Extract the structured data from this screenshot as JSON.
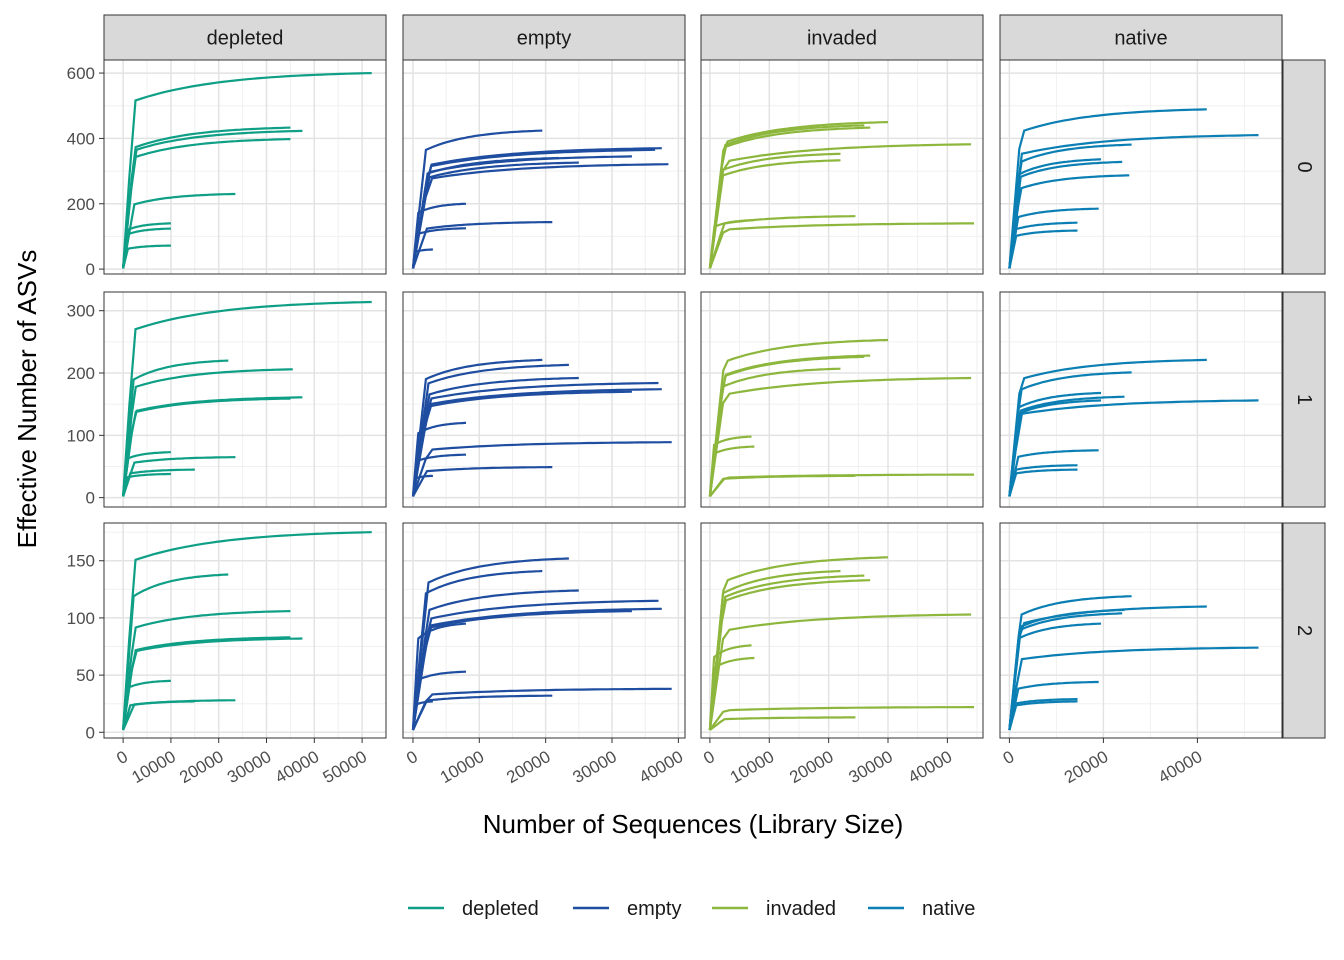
{
  "chart_data": {
    "type": "line",
    "title": "",
    "xlabel": "Number of Sequences (Library Size)",
    "ylabel": "Effective Number of ASVs",
    "grid": true,
    "legend_position": "bottom",
    "legend": [
      "depleted",
      "empty",
      "invaded",
      "native"
    ],
    "colors": {
      "depleted": "#0e9f86",
      "empty": "#1f4da0",
      "invaded": "#8db63c",
      "native": "#0b7fb3"
    },
    "columns": [
      "depleted",
      "empty",
      "invaded",
      "native"
    ],
    "rows": [
      "0",
      "1",
      "2"
    ],
    "x_ranges": {
      "depleted": [
        -4000,
        55000
      ],
      "empty": [
        -1500,
        41000
      ],
      "invaded": [
        -1500,
        46000
      ],
      "native": [
        -2000,
        58000
      ]
    },
    "x_ticks": {
      "depleted": [
        0,
        10000,
        20000,
        30000,
        40000,
        50000
      ],
      "empty": [
        0,
        10000,
        20000,
        30000,
        40000
      ],
      "invaded": [
        0,
        10000,
        20000,
        30000,
        40000
      ],
      "native": [
        0,
        20000,
        40000
      ]
    },
    "y_ranges": {
      "0": [
        -15,
        640
      ],
      "1": [
        -15,
        330
      ],
      "2": [
        -5,
        183
      ]
    },
    "y_ticks": {
      "0": [
        0,
        200,
        400,
        600
      ],
      "1": [
        0,
        100,
        200,
        300
      ],
      "2": [
        0,
        50,
        100,
        150
      ]
    },
    "panels": {
      "depleted": {
        "0": [
          [
            52000,
            600
          ],
          [
            37500,
            423
          ],
          [
            35000,
            433
          ],
          [
            35000,
            398
          ],
          [
            23500,
            230
          ],
          [
            10000,
            140
          ],
          [
            10000,
            124
          ],
          [
            10000,
            72
          ]
        ],
        "1": [
          [
            52000,
            314
          ],
          [
            35500,
            206
          ],
          [
            22000,
            220
          ],
          [
            37500,
            161
          ],
          [
            35000,
            159
          ],
          [
            23500,
            65
          ],
          [
            15000,
            45
          ],
          [
            10000,
            73
          ],
          [
            10000,
            38
          ]
        ],
        "2": [
          [
            52000,
            175
          ],
          [
            22000,
            138
          ],
          [
            35000,
            106
          ],
          [
            37500,
            82
          ],
          [
            35000,
            83
          ],
          [
            10000,
            45
          ],
          [
            23500,
            28
          ],
          [
            15000,
            27
          ]
        ]
      },
      "empty": {
        "0": [
          [
            19500,
            424
          ],
          [
            37500,
            370
          ],
          [
            38500,
            321
          ],
          [
            36500,
            365
          ],
          [
            33000,
            345
          ],
          [
            25000,
            326
          ],
          [
            22000,
            340
          ],
          [
            21000,
            144
          ],
          [
            8000,
            200
          ],
          [
            8000,
            125
          ],
          [
            3000,
            60
          ]
        ],
        "1": [
          [
            19500,
            221
          ],
          [
            23500,
            213
          ],
          [
            37000,
            184
          ],
          [
            25000,
            192
          ],
          [
            37500,
            174
          ],
          [
            33000,
            170
          ],
          [
            21000,
            49
          ],
          [
            8000,
            120
          ],
          [
            8000,
            69
          ],
          [
            39000,
            89
          ],
          [
            3000,
            35
          ]
        ],
        "2": [
          [
            23500,
            152
          ],
          [
            19500,
            141
          ],
          [
            25000,
            124
          ],
          [
            37000,
            115
          ],
          [
            37500,
            108
          ],
          [
            33000,
            106
          ],
          [
            8000,
            95
          ],
          [
            8000,
            53
          ],
          [
            39000,
            38
          ],
          [
            21000,
            32
          ],
          [
            3000,
            27
          ]
        ]
      },
      "invaded": {
        "0": [
          [
            30000,
            450
          ],
          [
            27000,
            433
          ],
          [
            44000,
            382
          ],
          [
            22000,
            333
          ],
          [
            22000,
            353
          ],
          [
            44500,
            140
          ],
          [
            24500,
            162
          ],
          [
            7500,
            150
          ],
          [
            26000,
            440
          ]
        ],
        "1": [
          [
            30000,
            253
          ],
          [
            26000,
            226
          ],
          [
            27000,
            228
          ],
          [
            44000,
            192
          ],
          [
            22000,
            207
          ],
          [
            7000,
            98
          ],
          [
            7500,
            82
          ],
          [
            44500,
            37
          ],
          [
            24500,
            35
          ]
        ],
        "2": [
          [
            30000,
            153
          ],
          [
            22000,
            141
          ],
          [
            26000,
            137
          ],
          [
            27000,
            133
          ],
          [
            44000,
            103
          ],
          [
            7000,
            76
          ],
          [
            7500,
            65
          ],
          [
            44500,
            22
          ],
          [
            24500,
            13
          ]
        ]
      },
      "native": {
        "0": [
          [
            42000,
            489
          ],
          [
            53000,
            410
          ],
          [
            26000,
            381
          ],
          [
            19500,
            336
          ],
          [
            24000,
            328
          ],
          [
            25500,
            287
          ],
          [
            19000,
            185
          ],
          [
            14500,
            142
          ],
          [
            14500,
            118
          ]
        ],
        "1": [
          [
            42000,
            221
          ],
          [
            26000,
            201
          ],
          [
            19500,
            168
          ],
          [
            24500,
            162
          ],
          [
            19500,
            156
          ],
          [
            53000,
            156
          ],
          [
            19000,
            76
          ],
          [
            14500,
            52
          ],
          [
            14500,
            45
          ]
        ],
        "2": [
          [
            26000,
            119
          ],
          [
            42000,
            110
          ],
          [
            24500,
            107
          ],
          [
            24000,
            104
          ],
          [
            19500,
            95
          ],
          [
            53000,
            74
          ],
          [
            19000,
            44
          ],
          [
            14500,
            29
          ],
          [
            14500,
            27
          ]
        ]
      }
    }
  }
}
